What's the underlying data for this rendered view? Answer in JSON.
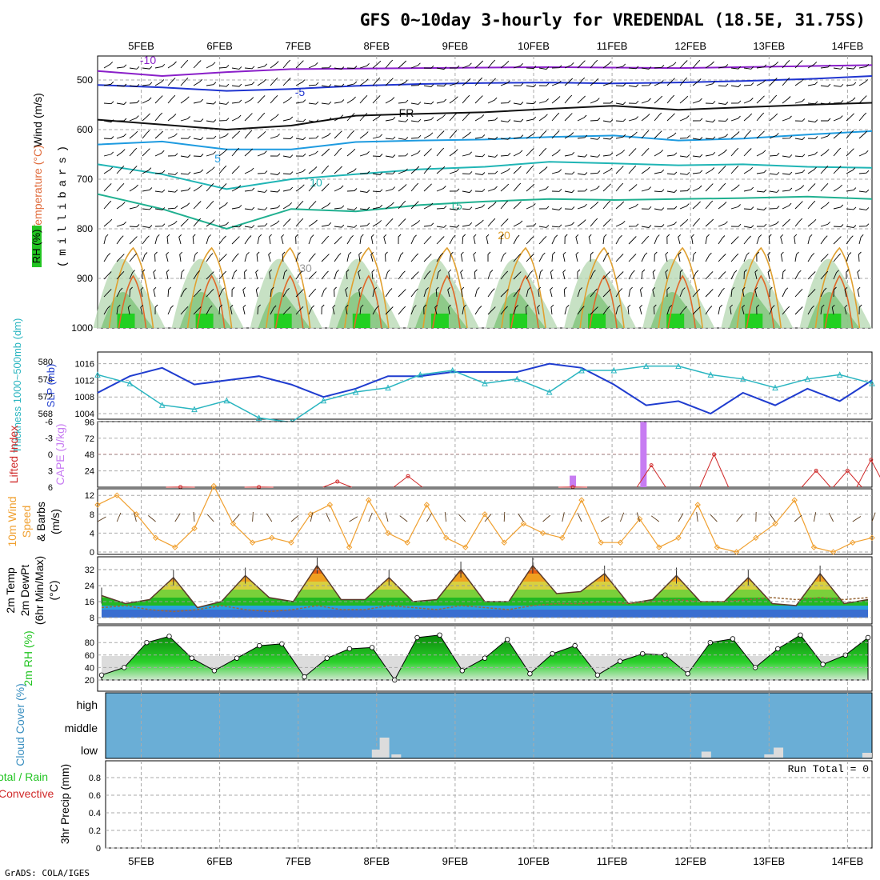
{
  "title": "GFS 0~10day 3-hourly for VREDENDAL (18.5E, 31.75S)",
  "credit": "GrADS: COLA/IGES",
  "dates": [
    "5FEB",
    "6FEB",
    "7FEB",
    "8FEB",
    "9FEB",
    "10FEB",
    "11FEB",
    "12FEB",
    "13FEB",
    "14FEB"
  ],
  "colors": {
    "grid": "#aaaaaa",
    "thickness": "#2ab5c0",
    "slp": "#1f3ccf",
    "lifted_index": "#d02a2a",
    "cape": "#c77cf2",
    "wind": "#f0a030",
    "rh_fill": "#22c422",
    "cloud": "#6aaed6",
    "dewpoint": "#9a6a3a"
  },
  "chart_data": [
    {
      "id": "sounding",
      "type": "heatmap",
      "ylabel_parts": [
        "Wind (m/s)",
        "Temperature (°C)",
        "RH (%)"
      ],
      "ylabel2": "(millibars)",
      "y_ticks": [
        "500",
        "600",
        "700",
        "800",
        "900",
        "1000"
      ],
      "contour_labels": [
        "-10",
        "-5",
        "FR",
        "5",
        "10",
        "15",
        "20",
        "30"
      ],
      "isotherms": [
        {
          "label": "-10",
          "color": "#8a1fc9",
          "p": [
            482,
            492,
            484,
            478,
            477,
            476,
            475,
            474,
            475,
            476,
            474,
            472,
            470
          ]
        },
        {
          "label": "-5",
          "color": "#2035d0",
          "p": [
            510,
            515,
            522,
            518,
            512,
            508,
            506,
            505,
            507,
            505,
            502,
            498,
            492
          ]
        },
        {
          "label": "FR",
          "color": "#111111",
          "p": [
            580,
            590,
            600,
            592,
            572,
            568,
            565,
            558,
            552,
            560,
            555,
            550,
            546
          ]
        },
        {
          "label": "5",
          "color": "#1e9be0",
          "p": [
            630,
            624,
            640,
            640,
            625,
            622,
            620,
            615,
            612,
            622,
            618,
            610,
            603
          ]
        },
        {
          "label": "10",
          "color": "#20b5b5",
          "p": [
            670,
            690,
            720,
            700,
            690,
            680,
            675,
            665,
            668,
            672,
            670,
            675,
            677
          ]
        },
        {
          "label": "15",
          "color": "#20b090",
          "p": [
            730,
            760,
            800,
            760,
            765,
            752,
            745,
            740,
            742,
            740,
            738,
            735,
            740
          ]
        }
      ]
    },
    {
      "id": "slp-thickness",
      "type": "line",
      "ylabel_left": "Thickness 1000~500mb (dm)",
      "ylabel_right": "SLP (mb)",
      "thickness_ticks": [
        "568",
        "572",
        "576",
        "580"
      ],
      "slp_ticks": [
        "1004",
        "1008",
        "1012",
        "1016"
      ],
      "series": [
        {
          "name": "SLP (mb)",
          "values": [
            1009,
            1013,
            1015,
            1011,
            1012,
            1013,
            1011,
            1008,
            1010,
            1013,
            1013,
            1014,
            1014,
            1014,
            1016,
            1015,
            1011,
            1006,
            1007,
            1004,
            1009,
            1006,
            1010,
            1007,
            1012
          ]
        },
        {
          "name": "Thickness (dm)",
          "values": [
            577,
            575,
            570,
            569,
            571,
            567,
            566,
            571,
            573,
            574,
            577,
            578,
            575,
            576,
            573,
            578,
            578,
            579,
            579,
            577,
            576,
            574,
            576,
            577,
            575
          ]
        }
      ]
    },
    {
      "id": "cape-li",
      "type": "bar",
      "ylabel_left": "Lifted Index",
      "ylabel_right": "CAPE (J/kg)",
      "li_ticks": [
        "-6",
        "-3",
        "0",
        "3",
        "6"
      ],
      "cape_ticks": [
        "24",
        "48",
        "72",
        "96"
      ],
      "cape_bars": [
        {
          "date": "10FEB 12Z",
          "value": 17
        },
        {
          "date": "11FEB 09Z",
          "value": 96
        }
      ],
      "li_peaks": [
        {
          "day": 0.5,
          "value": 6
        },
        {
          "day": 1.5,
          "value": 6
        },
        {
          "day": 2.5,
          "value": 5
        },
        {
          "day": 3.4,
          "value": 4
        },
        {
          "day": 5.5,
          "value": 6
        },
        {
          "day": 6.5,
          "value": 2
        },
        {
          "day": 7.3,
          "value": 0
        },
        {
          "day": 8.6,
          "value": 3
        },
        {
          "day": 9.0,
          "value": 3
        },
        {
          "day": 9.3,
          "value": 1
        }
      ]
    },
    {
      "id": "wind",
      "type": "line",
      "ylabel": "10m Wind Speed & Barbs (m/s)",
      "ylabel_parts": [
        "10m Wind",
        "Speed",
        "& Barbs",
        "(m/s)"
      ],
      "y_ticks": [
        "0",
        "4",
        "8",
        "12"
      ],
      "series": [
        {
          "name": "Speed",
          "values": [
            10,
            12,
            8,
            3,
            1,
            5,
            14,
            6,
            2,
            3,
            2,
            8,
            10,
            1,
            11,
            4,
            2,
            10,
            3,
            1,
            8,
            2,
            6,
            4,
            3,
            11,
            2,
            2,
            7,
            1,
            3,
            10,
            1,
            0,
            3,
            6,
            11,
            1,
            0,
            2,
            3
          ]
        }
      ]
    },
    {
      "id": "temperature",
      "type": "area",
      "ylabel_parts": [
        "2m Temp",
        "2m DewPt",
        "(6hr Min/Max)",
        "(°C)"
      ],
      "y_ticks": [
        "8",
        "16",
        "24",
        "32"
      ],
      "series": [
        {
          "name": "2m Temp",
          "values": [
            19,
            15,
            17,
            28,
            13,
            16,
            29,
            18,
            16,
            34,
            17,
            17,
            28,
            16,
            17,
            32,
            16,
            16,
            34,
            20,
            21,
            30,
            15,
            17,
            29,
            16,
            16,
            28,
            15,
            14,
            30,
            15,
            17
          ]
        },
        {
          "name": "2m DewPt",
          "values": [
            13,
            14,
            12,
            11,
            12,
            14,
            12,
            11,
            12,
            14,
            12,
            12,
            14,
            13,
            12,
            14,
            13,
            12,
            14,
            15,
            15,
            16,
            15,
            16,
            17,
            16,
            16,
            17,
            18,
            17,
            18,
            17,
            18
          ]
        }
      ]
    },
    {
      "id": "rh",
      "type": "area",
      "ylabel": "2m RH (%)",
      "y_ticks": [
        "20",
        "40",
        "60",
        "80"
      ],
      "series": [
        {
          "name": "2m RH",
          "values": [
            28,
            40,
            80,
            90,
            55,
            35,
            55,
            75,
            78,
            25,
            55,
            70,
            72,
            20,
            88,
            92,
            35,
            55,
            85,
            30,
            62,
            75,
            28,
            50,
            62,
            60,
            30,
            80,
            86,
            40,
            70,
            92,
            45,
            60,
            88
          ]
        }
      ]
    },
    {
      "id": "cloud",
      "type": "bar",
      "ylabel": "Cloud Cover (%)",
      "levels": [
        "high",
        "middle",
        "low"
      ],
      "low_bars": [
        {
          "day": 3.0,
          "value": 20
        },
        {
          "day": 3.1,
          "value": 50
        },
        {
          "day": 3.25,
          "value": 8
        },
        {
          "day": 7.2,
          "value": 15
        },
        {
          "day": 8.0,
          "value": 8
        },
        {
          "day": 8.12,
          "value": 25
        },
        {
          "day": 9.25,
          "value": 12
        }
      ]
    },
    {
      "id": "precip",
      "type": "bar",
      "ylabel": "3hr Precip (mm)",
      "legend_left": [
        "Total / Rain",
        "Convective"
      ],
      "run_total": "Run Total = 0",
      "y_ticks": [
        "0",
        "0.2",
        "0.4",
        "0.6",
        "0.8"
      ],
      "values": []
    }
  ]
}
